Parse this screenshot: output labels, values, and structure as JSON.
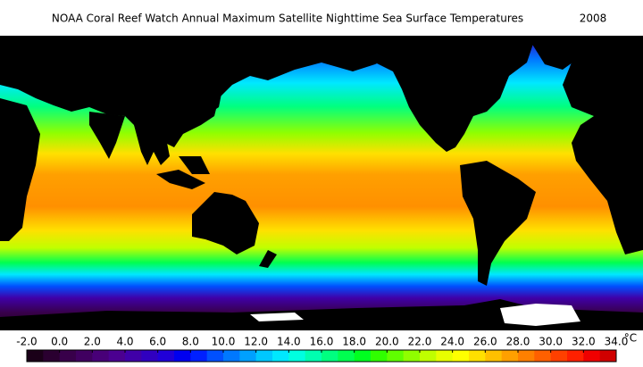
{
  "header": {
    "title": "NOAA Coral Reef Watch Annual Maximum Satellite Nighttime Sea Surface Temperatures",
    "year": "2008"
  },
  "colorbar": {
    "range": [
      -2,
      34
    ],
    "unit": "°C",
    "ticks": [
      {
        "value": -2,
        "label": "-2.0"
      },
      {
        "value": 0,
        "label": "0.0"
      },
      {
        "value": 2,
        "label": "2.0"
      },
      {
        "value": 4,
        "label": "4.0"
      },
      {
        "value": 6,
        "label": "6.0"
      },
      {
        "value": 8,
        "label": "8.0"
      },
      {
        "value": 10,
        "label": "10.0"
      },
      {
        "value": 12,
        "label": "12.0"
      },
      {
        "value": 14,
        "label": "14.0"
      },
      {
        "value": 16,
        "label": "16.0"
      },
      {
        "value": 18,
        "label": "18.0"
      },
      {
        "value": 20,
        "label": "20.0"
      },
      {
        "value": 22,
        "label": "22.0"
      },
      {
        "value": 24,
        "label": "24.0"
      },
      {
        "value": 26,
        "label": "26.0"
      },
      {
        "value": 28,
        "label": "28.0"
      },
      {
        "value": 30,
        "label": "30.0"
      },
      {
        "value": 32,
        "label": "32.0"
      },
      {
        "value": 34,
        "label": "34.0"
      }
    ],
    "colors": [
      "#1a0018",
      "#2a0030",
      "#38004a",
      "#400060",
      "#480078",
      "#4b0090",
      "#4000a8",
      "#3000c0",
      "#2000d8",
      "#0000f0",
      "#0020ff",
      "#0050ff",
      "#0078ff",
      "#00a0ff",
      "#00c8ff",
      "#00e8ff",
      "#00ffe0",
      "#00ffb0",
      "#00ff80",
      "#00ff50",
      "#00ff20",
      "#30ff00",
      "#60ff00",
      "#90ff00",
      "#c0ff00",
      "#e8ff00",
      "#ffff00",
      "#ffe000",
      "#ffc000",
      "#ffa000",
      "#ff8000",
      "#ff6000",
      "#ff4000",
      "#ff2000",
      "#f00000",
      "#d00000"
    ]
  }
}
